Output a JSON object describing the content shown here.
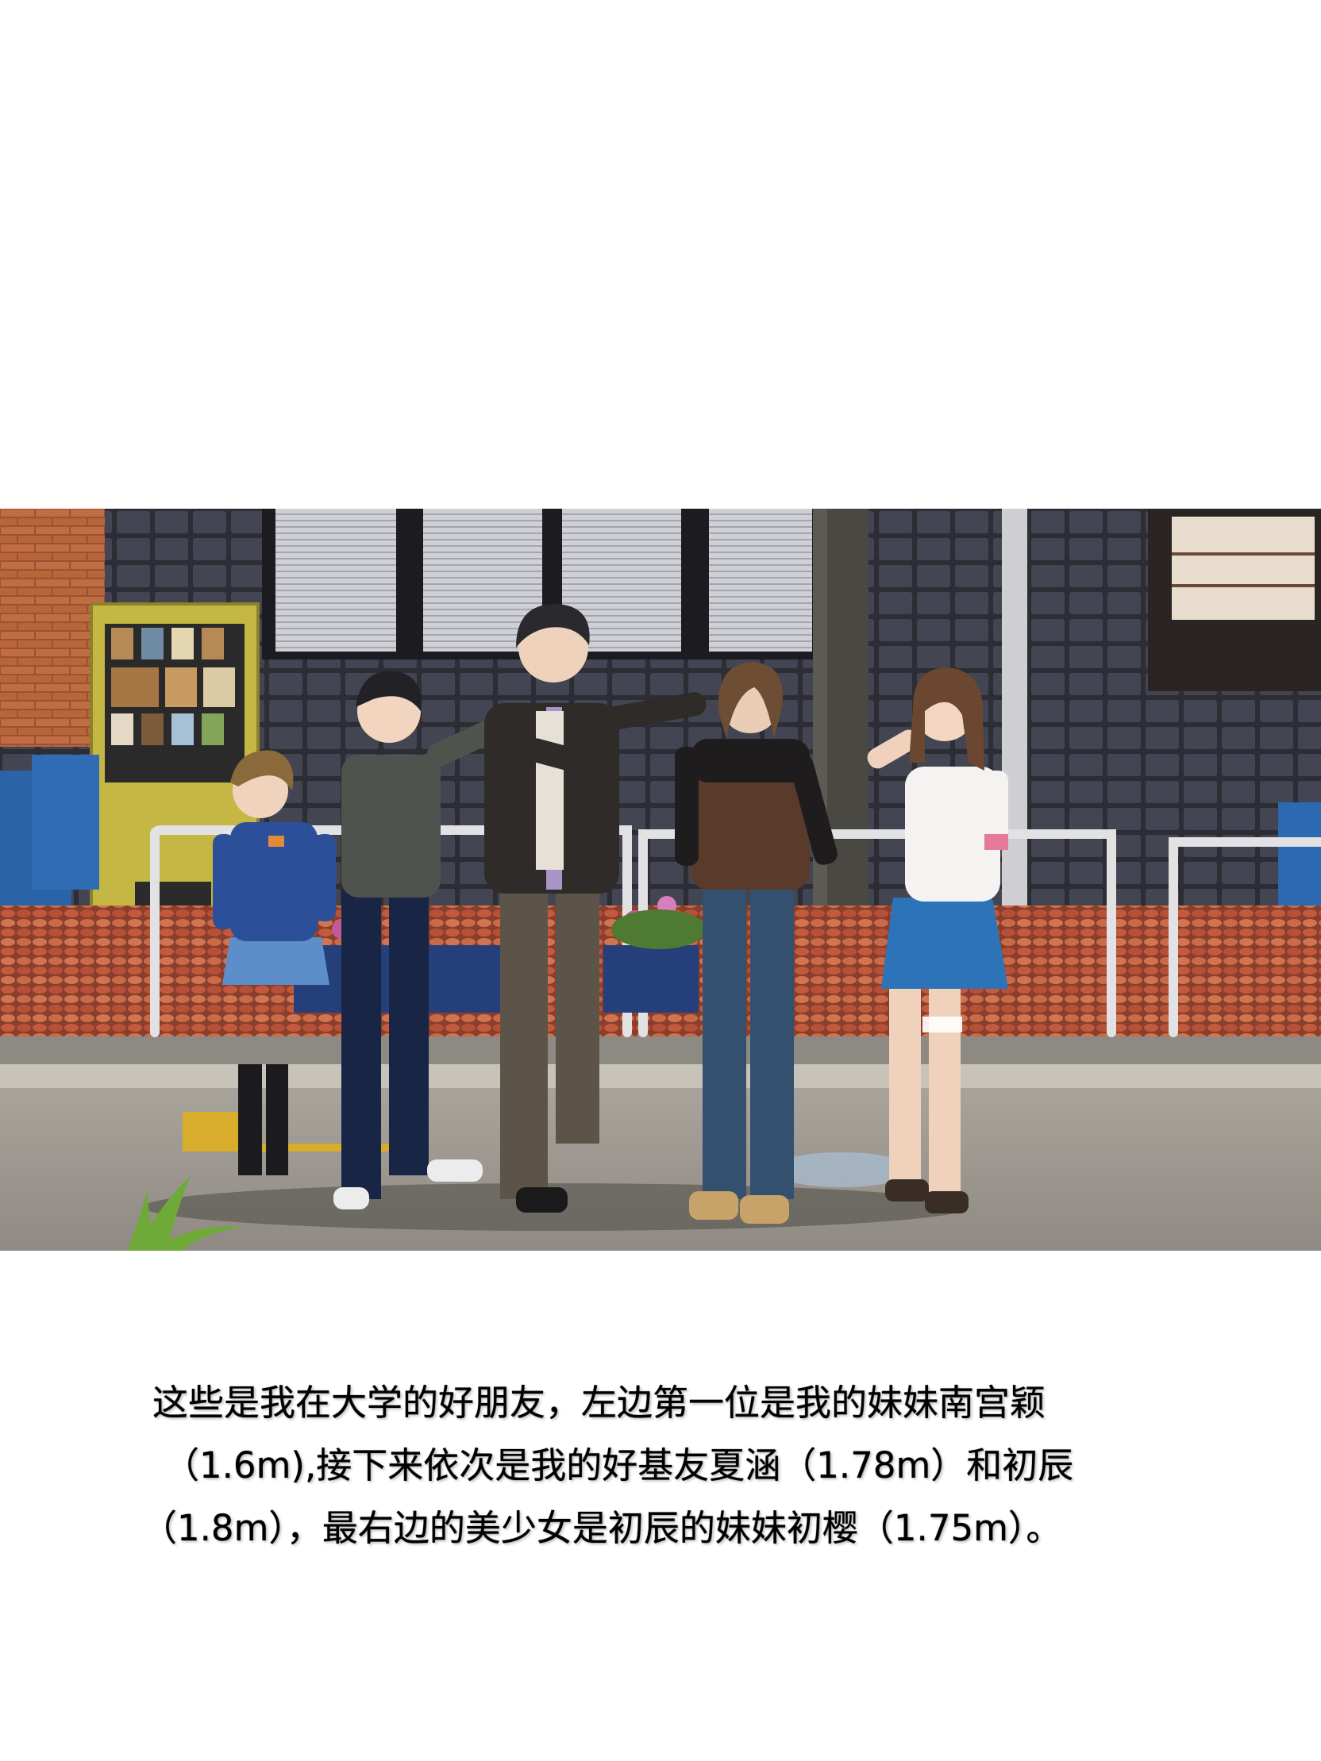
{
  "caption": {
    "lines": [
      "这些是我在大学的好朋友，左边第一位是我的妹妹南宫颖",
      "（1.6m),接下来依次是我的好基友夏涵（1.78m）和初辰",
      "（1.8m），最右边的美少女是初辰的妹妹初樱（1.75m）。"
    ]
  },
  "colors": {
    "background": "#ffffff",
    "text": "#000000",
    "wall_tile": "#3c3c46",
    "brick": "#b0603a",
    "pavement": "#b5553e",
    "road": "#9e9a94",
    "vending_machine": "#c9b845",
    "railing": "#dcdcdc"
  }
}
